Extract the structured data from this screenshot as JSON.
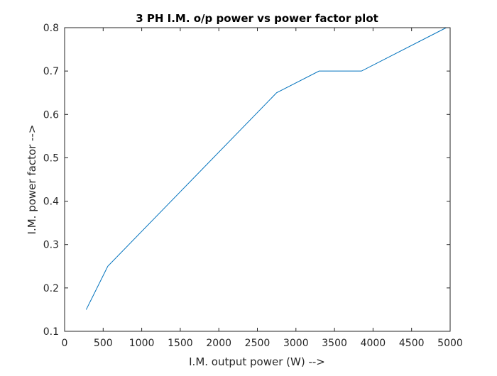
{
  "chart_data": {
    "type": "line",
    "title": "3 PH I.M. o/p power vs power factor plot",
    "xlabel": "I.M. output power (W) -->",
    "ylabel": "I.M. power factor -->",
    "xlim": [
      0,
      5000
    ],
    "ylim": [
      0.1,
      0.8
    ],
    "xticks": [
      0,
      500,
      1000,
      1500,
      2000,
      2500,
      3000,
      3500,
      4000,
      4500,
      5000
    ],
    "xtick_labels": [
      "0",
      "500",
      "1000",
      "1500",
      "2000",
      "2500",
      "3000",
      "3500",
      "4000",
      "4500",
      "5000"
    ],
    "yticks": [
      0.1,
      0.2,
      0.3,
      0.4,
      0.5,
      0.6,
      0.7,
      0.8
    ],
    "ytick_labels": [
      "0.1",
      "0.2",
      "0.3",
      "0.4",
      "0.5",
      "0.6",
      "0.7",
      "0.8"
    ],
    "grid": false,
    "series": [
      {
        "color": "#0072BD",
        "x": [
          280,
          560,
          2750,
          3300,
          3850,
          4950
        ],
        "y": [
          0.15,
          0.25,
          0.65,
          0.7,
          0.7,
          0.8
        ]
      }
    ]
  }
}
